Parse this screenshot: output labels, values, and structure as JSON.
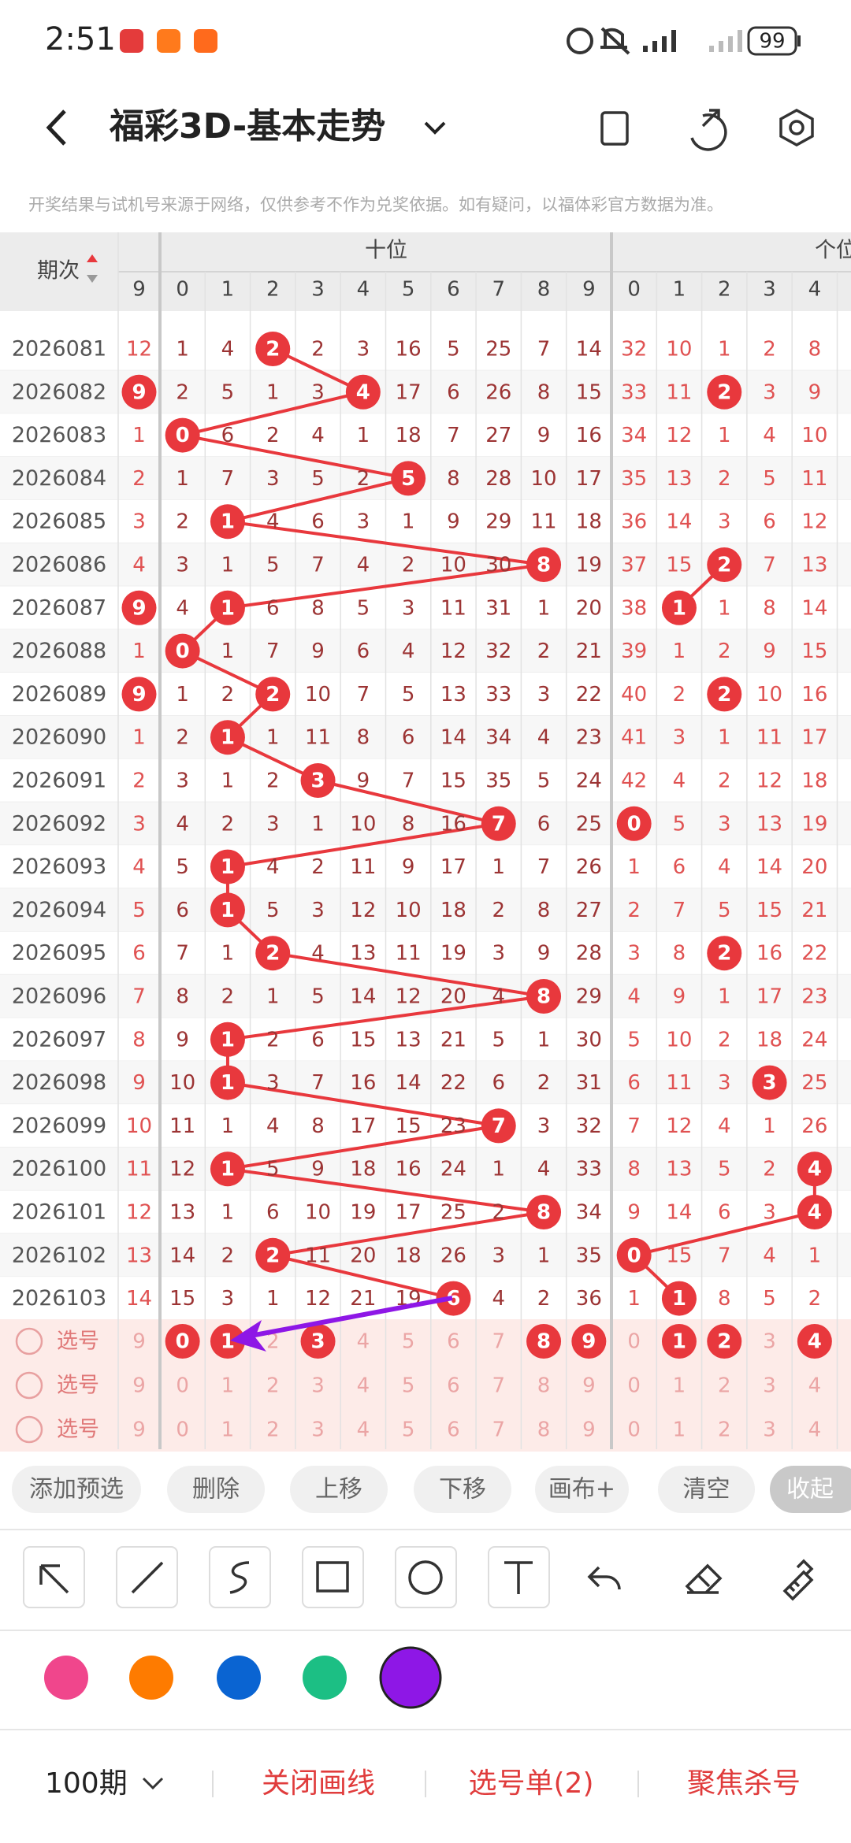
{
  "status_bar": {
    "time": "2:51",
    "battery": "99"
  },
  "header": {
    "title": "福彩3D-基本走势"
  },
  "notice": "开奖结果与试机号来源于网络，仅供参考不作为兑奖依据。如有疑问，以福体彩官方数据为准。",
  "table": {
    "period_header": "期次",
    "groups": [
      "十位",
      "个位"
    ],
    "columns": [
      9,
      0,
      1,
      2,
      3,
      4,
      5,
      6,
      7,
      8,
      9,
      0,
      1,
      2,
      3,
      4
    ],
    "rows": [
      {
        "period": "2026081",
        "cells": [
          12,
          1,
          4,
          {
            "value": 2,
            "hit": true
          },
          2,
          3,
          16,
          5,
          25,
          7,
          14,
          32,
          10,
          1,
          2,
          8
        ]
      },
      {
        "period": "2026082",
        "cells": [
          {
            "value": 9,
            "hit": true
          },
          2,
          5,
          1,
          3,
          {
            "value": 4,
            "hit": true
          },
          17,
          6,
          26,
          8,
          15,
          33,
          11,
          {
            "value": 2,
            "hit": true
          },
          3,
          9
        ]
      },
      {
        "period": "2026083",
        "cells": [
          1,
          {
            "value": 0,
            "hit": true
          },
          6,
          2,
          4,
          1,
          18,
          7,
          27,
          9,
          16,
          34,
          12,
          1,
          4,
          10
        ]
      },
      {
        "period": "2026084",
        "cells": [
          2,
          1,
          7,
          3,
          5,
          2,
          {
            "value": 5,
            "hit": true
          },
          8,
          28,
          10,
          17,
          35,
          13,
          2,
          5,
          11
        ]
      },
      {
        "period": "2026085",
        "cells": [
          3,
          2,
          {
            "value": 1,
            "hit": true
          },
          4,
          6,
          3,
          1,
          9,
          29,
          11,
          18,
          36,
          14,
          3,
          6,
          12
        ]
      },
      {
        "period": "2026086",
        "cells": [
          4,
          3,
          1,
          5,
          7,
          4,
          2,
          10,
          30,
          {
            "value": 8,
            "hit": true
          },
          19,
          37,
          15,
          {
            "value": 2,
            "hit": true
          },
          7,
          13
        ]
      },
      {
        "period": "2026087",
        "cells": [
          {
            "value": 9,
            "hit": true
          },
          4,
          {
            "value": 1,
            "hit": true
          },
          6,
          8,
          5,
          3,
          11,
          31,
          1,
          20,
          38,
          {
            "value": 1,
            "hit": true
          },
          1,
          8,
          14
        ]
      },
      {
        "period": "2026088",
        "cells": [
          1,
          {
            "value": 0,
            "hit": true
          },
          1,
          7,
          9,
          6,
          4,
          12,
          32,
          2,
          21,
          39,
          1,
          2,
          9,
          15
        ]
      },
      {
        "period": "2026089",
        "cells": [
          {
            "value": 9,
            "hit": true
          },
          1,
          2,
          {
            "value": 2,
            "hit": true
          },
          10,
          7,
          5,
          13,
          33,
          3,
          22,
          40,
          2,
          {
            "value": 2,
            "hit": true
          },
          10,
          16
        ]
      },
      {
        "period": "2026090",
        "cells": [
          1,
          2,
          {
            "value": 1,
            "hit": true
          },
          1,
          11,
          8,
          6,
          14,
          34,
          4,
          23,
          41,
          3,
          1,
          11,
          17
        ]
      },
      {
        "period": "2026091",
        "cells": [
          2,
          3,
          1,
          2,
          {
            "value": 3,
            "hit": true
          },
          9,
          7,
          15,
          35,
          5,
          24,
          42,
          4,
          2,
          12,
          18
        ]
      },
      {
        "period": "2026092",
        "cells": [
          3,
          4,
          2,
          3,
          1,
          10,
          8,
          16,
          {
            "value": 7,
            "hit": true
          },
          6,
          25,
          {
            "value": 0,
            "hit": true
          },
          5,
          3,
          13,
          19
        ]
      },
      {
        "period": "2026093",
        "cells": [
          4,
          5,
          {
            "value": 1,
            "hit": true
          },
          4,
          2,
          11,
          9,
          17,
          1,
          7,
          26,
          1,
          6,
          4,
          14,
          20
        ]
      },
      {
        "period": "2026094",
        "cells": [
          5,
          6,
          {
            "value": 1,
            "hit": true
          },
          5,
          3,
          12,
          10,
          18,
          2,
          8,
          27,
          2,
          7,
          5,
          15,
          21
        ]
      },
      {
        "period": "2026095",
        "cells": [
          6,
          7,
          1,
          {
            "value": 2,
            "hit": true
          },
          4,
          13,
          11,
          19,
          3,
          9,
          28,
          3,
          8,
          {
            "value": 2,
            "hit": true
          },
          16,
          22
        ]
      },
      {
        "period": "2026096",
        "cells": [
          7,
          8,
          2,
          1,
          5,
          14,
          12,
          20,
          4,
          {
            "value": 8,
            "hit": true
          },
          29,
          4,
          9,
          1,
          17,
          23
        ]
      },
      {
        "period": "2026097",
        "cells": [
          8,
          9,
          {
            "value": 1,
            "hit": true
          },
          2,
          6,
          15,
          13,
          21,
          5,
          1,
          30,
          5,
          10,
          2,
          18,
          24
        ]
      },
      {
        "period": "2026098",
        "cells": [
          9,
          10,
          {
            "value": 1,
            "hit": true
          },
          3,
          7,
          16,
          14,
          22,
          6,
          2,
          31,
          6,
          11,
          3,
          {
            "value": 3,
            "hit": true
          },
          25
        ]
      },
      {
        "period": "2026099",
        "cells": [
          10,
          11,
          1,
          4,
          8,
          17,
          15,
          23,
          {
            "value": 7,
            "hit": true
          },
          3,
          32,
          7,
          12,
          4,
          1,
          26
        ]
      },
      {
        "period": "2026100",
        "cells": [
          11,
          12,
          {
            "value": 1,
            "hit": true
          },
          5,
          9,
          18,
          16,
          24,
          1,
          4,
          33,
          8,
          13,
          5,
          2,
          {
            "value": 4,
            "hit": true
          }
        ]
      },
      {
        "period": "2026101",
        "cells": [
          12,
          13,
          1,
          6,
          10,
          19,
          17,
          25,
          2,
          {
            "value": 8,
            "hit": true
          },
          34,
          9,
          14,
          6,
          3,
          {
            "value": 4,
            "hit": true
          }
        ]
      },
      {
        "period": "2026102",
        "cells": [
          13,
          14,
          2,
          {
            "value": 2,
            "hit": true
          },
          11,
          20,
          18,
          26,
          3,
          1,
          35,
          {
            "value": 0,
            "hit": true
          },
          15,
          7,
          4,
          1
        ]
      },
      {
        "period": "2026103",
        "cells": [
          14,
          15,
          3,
          1,
          12,
          21,
          19,
          {
            "value": 6,
            "hit": true
          },
          4,
          2,
          36,
          1,
          {
            "value": 1,
            "hit": true
          },
          8,
          5,
          2
        ]
      }
    ],
    "select_rows": [
      {
        "label": "选号",
        "cells": [
          9,
          {
            "value": 0,
            "hit": true
          },
          {
            "value": 1,
            "hit": true
          },
          2,
          {
            "value": 3,
            "hit": true
          },
          4,
          5,
          6,
          7,
          {
            "value": 8,
            "hit": true
          },
          {
            "value": 9,
            "hit": true
          },
          0,
          {
            "value": 1,
            "hit": true
          },
          {
            "value": 2,
            "hit": true
          },
          3,
          {
            "value": 4,
            "hit": true
          }
        ]
      },
      {
        "label": "选号",
        "cells": [
          9,
          0,
          1,
          2,
          3,
          4,
          5,
          6,
          7,
          8,
          9,
          0,
          1,
          2,
          3,
          4
        ]
      },
      {
        "label": "选号",
        "cells": [
          9,
          0,
          1,
          2,
          3,
          4,
          5,
          6,
          7,
          8,
          9,
          0,
          1,
          2,
          3,
          4
        ]
      }
    ]
  },
  "toolbar_buttons": [
    "添加预选",
    "删除",
    "上移",
    "下移",
    "画布+",
    "清空",
    "收起"
  ],
  "palette": [
    "#f0468c",
    "#fe7b00",
    "#0a64d2",
    "#1cbf84",
    "#8e17e6"
  ],
  "footer": {
    "period_select": "100期",
    "actions": [
      "关闭画线",
      "选号单(2)",
      "聚焦杀号"
    ]
  }
}
